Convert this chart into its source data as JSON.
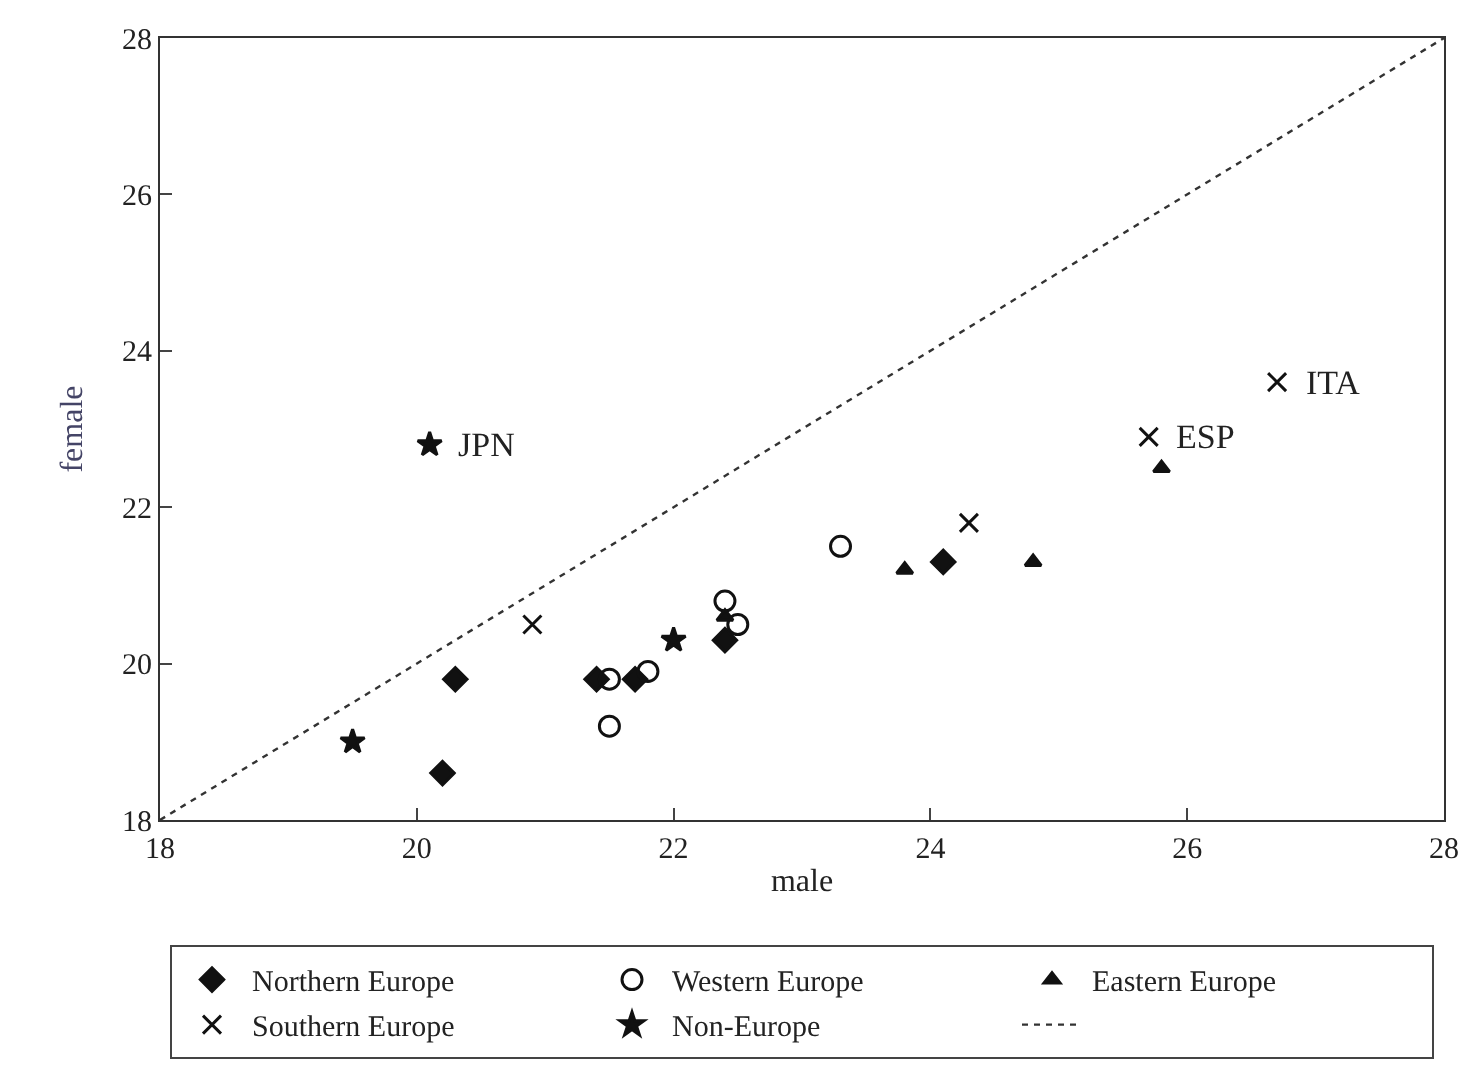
{
  "chart_data": {
    "type": "scatter",
    "xlabel": "male",
    "ylabel": "female",
    "xlim": [
      18,
      28
    ],
    "ylim": [
      18,
      28
    ],
    "xticks": [
      18,
      20,
      22,
      24,
      26,
      28
    ],
    "yticks": [
      18,
      20,
      22,
      24,
      26,
      28
    ],
    "legend": "bottom",
    "series": [
      {
        "name": "Northern Europe",
        "color": "#111111",
        "marker": "diamond",
        "x": [
          20.3,
          20.2,
          21.4,
          21.7,
          22.4,
          24.1
        ],
        "values": [
          19.8,
          18.6,
          19.8,
          19.8,
          20.3,
          21.3
        ]
      },
      {
        "name": "Western Europe",
        "color": "#111111",
        "marker": "circle",
        "x": [
          21.5,
          21.5,
          21.8,
          22.4,
          22.5,
          23.3
        ],
        "values": [
          19.8,
          19.2,
          19.9,
          20.8,
          20.5,
          21.5
        ]
      },
      {
        "name": "Eastern Europe",
        "color": "#111111",
        "marker": "triangle",
        "x": [
          22.4,
          23.8,
          24.8,
          25.8
        ],
        "values": [
          20.6,
          21.2,
          21.3,
          22.5
        ]
      },
      {
        "name": "Southern Europe",
        "color": "#111111",
        "marker": "cross",
        "x": [
          20.9,
          24.3,
          25.7,
          26.7
        ],
        "values": [
          20.5,
          21.8,
          22.9,
          23.6
        ]
      },
      {
        "name": "Non-Europe",
        "color": "#111111",
        "marker": "star",
        "x": [
          19.5,
          20.1,
          22.0
        ],
        "values": [
          19.0,
          22.8,
          20.3
        ]
      },
      {
        "type": "line",
        "color": "#333333",
        "line_style": "dotted",
        "marker": "none",
        "x": [
          18,
          28
        ],
        "values": [
          18,
          28
        ]
      }
    ],
    "annotations": [
      {
        "text": "JPN",
        "x": 20.1,
        "y": 22.8
      },
      {
        "text": "ESP",
        "x": 25.7,
        "y": 22.9
      },
      {
        "text": "ITA",
        "x": 26.7,
        "y": 23.6
      }
    ]
  }
}
